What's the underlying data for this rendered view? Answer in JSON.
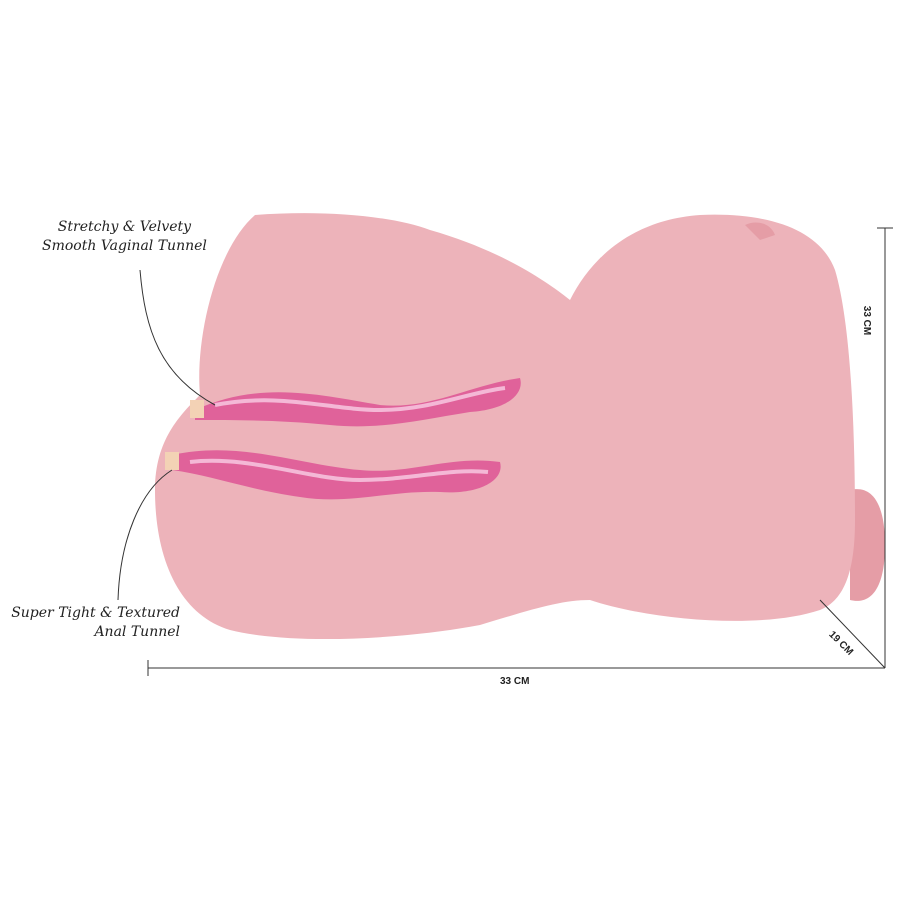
{
  "callouts": {
    "vaginal_tunnel": [
      "Stretchy & Velvety",
      "Smooth Vaginal Tunnel"
    ],
    "anal_tunnel": [
      "Super Tight & Textured",
      "Anal Tunnel"
    ]
  },
  "dimensions": {
    "width": "33 CM",
    "height": "33 CM",
    "depth": "19 CM"
  },
  "colors": {
    "body": "#EDB3BA",
    "body_shadow": "#E59DA6",
    "tunnel": "#E0629A",
    "tunnel_highlight": "#F4B8D6",
    "line": "#333333"
  }
}
